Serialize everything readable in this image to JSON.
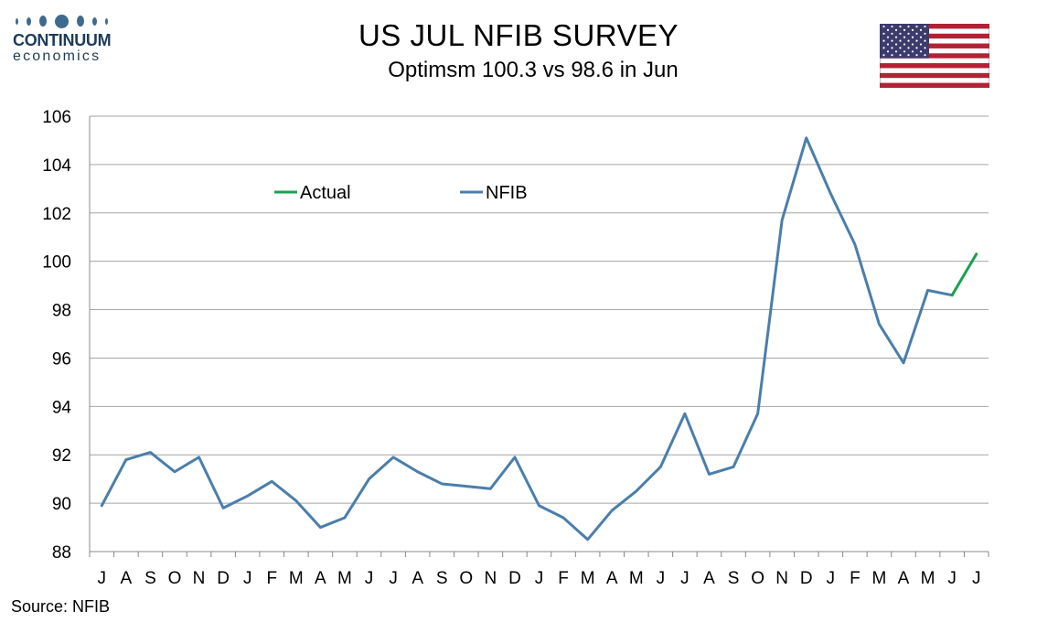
{
  "header": {
    "logo": {
      "name": "CONTINUUM",
      "sub": "economics",
      "icon": "logo-dots-icon"
    },
    "flag_icon": "us-flag-icon"
  },
  "footer": {
    "source": "Source: NFIB"
  },
  "colors": {
    "nfib": "#4a7eab",
    "actual": "#1aa150",
    "grid": "#a6a6a6",
    "flag_red": "#b22234",
    "flag_blue": "#3c3b6e"
  },
  "chart_data": {
    "type": "line",
    "title": "US JUL NFIB SURVEY",
    "subtitle": "Optimsm 100.3 vs 98.6 in Jun",
    "categories": [
      "J",
      "A",
      "S",
      "O",
      "N",
      "D",
      "J",
      "F",
      "M",
      "A",
      "M",
      "J",
      "J",
      "A",
      "S",
      "O",
      "N",
      "D",
      "J",
      "F",
      "M",
      "A",
      "M",
      "J",
      "J",
      "A",
      "S",
      "O",
      "N",
      "D",
      "J",
      "F",
      "M",
      "A",
      "M",
      "J",
      "J"
    ],
    "series": [
      {
        "name": "NFIB",
        "values": [
          89.9,
          91.8,
          92.1,
          91.3,
          91.9,
          89.8,
          90.3,
          90.9,
          90.1,
          89.0,
          89.4,
          91.0,
          91.9,
          91.3,
          90.8,
          90.7,
          90.6,
          91.9,
          89.9,
          89.4,
          88.5,
          89.7,
          90.5,
          91.5,
          93.7,
          91.2,
          91.5,
          93.7,
          101.7,
          105.1,
          102.8,
          100.7,
          97.4,
          95.8,
          98.8,
          98.6,
          null
        ]
      },
      {
        "name": "Actual",
        "values": [
          null,
          null,
          null,
          null,
          null,
          null,
          null,
          null,
          null,
          null,
          null,
          null,
          null,
          null,
          null,
          null,
          null,
          null,
          null,
          null,
          null,
          null,
          null,
          null,
          null,
          null,
          null,
          null,
          null,
          null,
          null,
          null,
          null,
          null,
          null,
          98.6,
          100.3
        ]
      }
    ],
    "ylim": [
      88,
      106
    ],
    "yticks": [
      88,
      90,
      92,
      94,
      96,
      98,
      100,
      102,
      104,
      106
    ],
    "grid": true,
    "legend_order": [
      "Actual",
      "NFIB"
    ],
    "legend_position": "top-left"
  }
}
